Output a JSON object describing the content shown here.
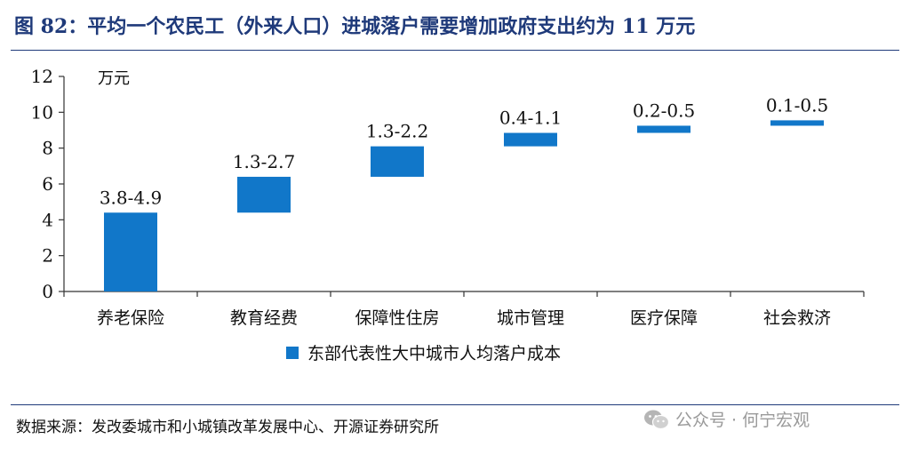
{
  "figure": {
    "title": "图 82：平均一个农民工（外来人口）进城落户需要增加政府支出约为 11 万元",
    "source": "数据来源：发改委城市和小城镇改革发展中心、开源证券研究所",
    "watermark": "公众号 · 何宁宏观",
    "accent_color": "#1f3a7a"
  },
  "chart_data": {
    "type": "bar",
    "subtype": "floating-waterfall",
    "title": "",
    "ylabel": "万元",
    "xlabel": "",
    "ylim": [
      0,
      12
    ],
    "yticks": [
      0,
      2,
      4,
      6,
      8,
      10,
      12
    ],
    "grid": false,
    "legend_position": "bottom",
    "categories": [
      "养老保险",
      "教育经费",
      "保障性住房",
      "城市管理",
      "医疗保障",
      "社会救济"
    ],
    "series": [
      {
        "name": "东部代表性大中城市人均落户成本",
        "color": "#1177c9",
        "ranges": [
          [
            0,
            4.4
          ],
          [
            4.4,
            6.4
          ],
          [
            6.4,
            8.1
          ],
          [
            8.1,
            8.85
          ],
          [
            8.85,
            9.25
          ],
          [
            9.25,
            9.55
          ]
        ],
        "data_labels": [
          "3.8-4.9",
          "1.3-2.7",
          "1.3-2.2",
          "0.4-1.1",
          "0.2-0.5",
          "0.1-0.5"
        ]
      }
    ]
  }
}
